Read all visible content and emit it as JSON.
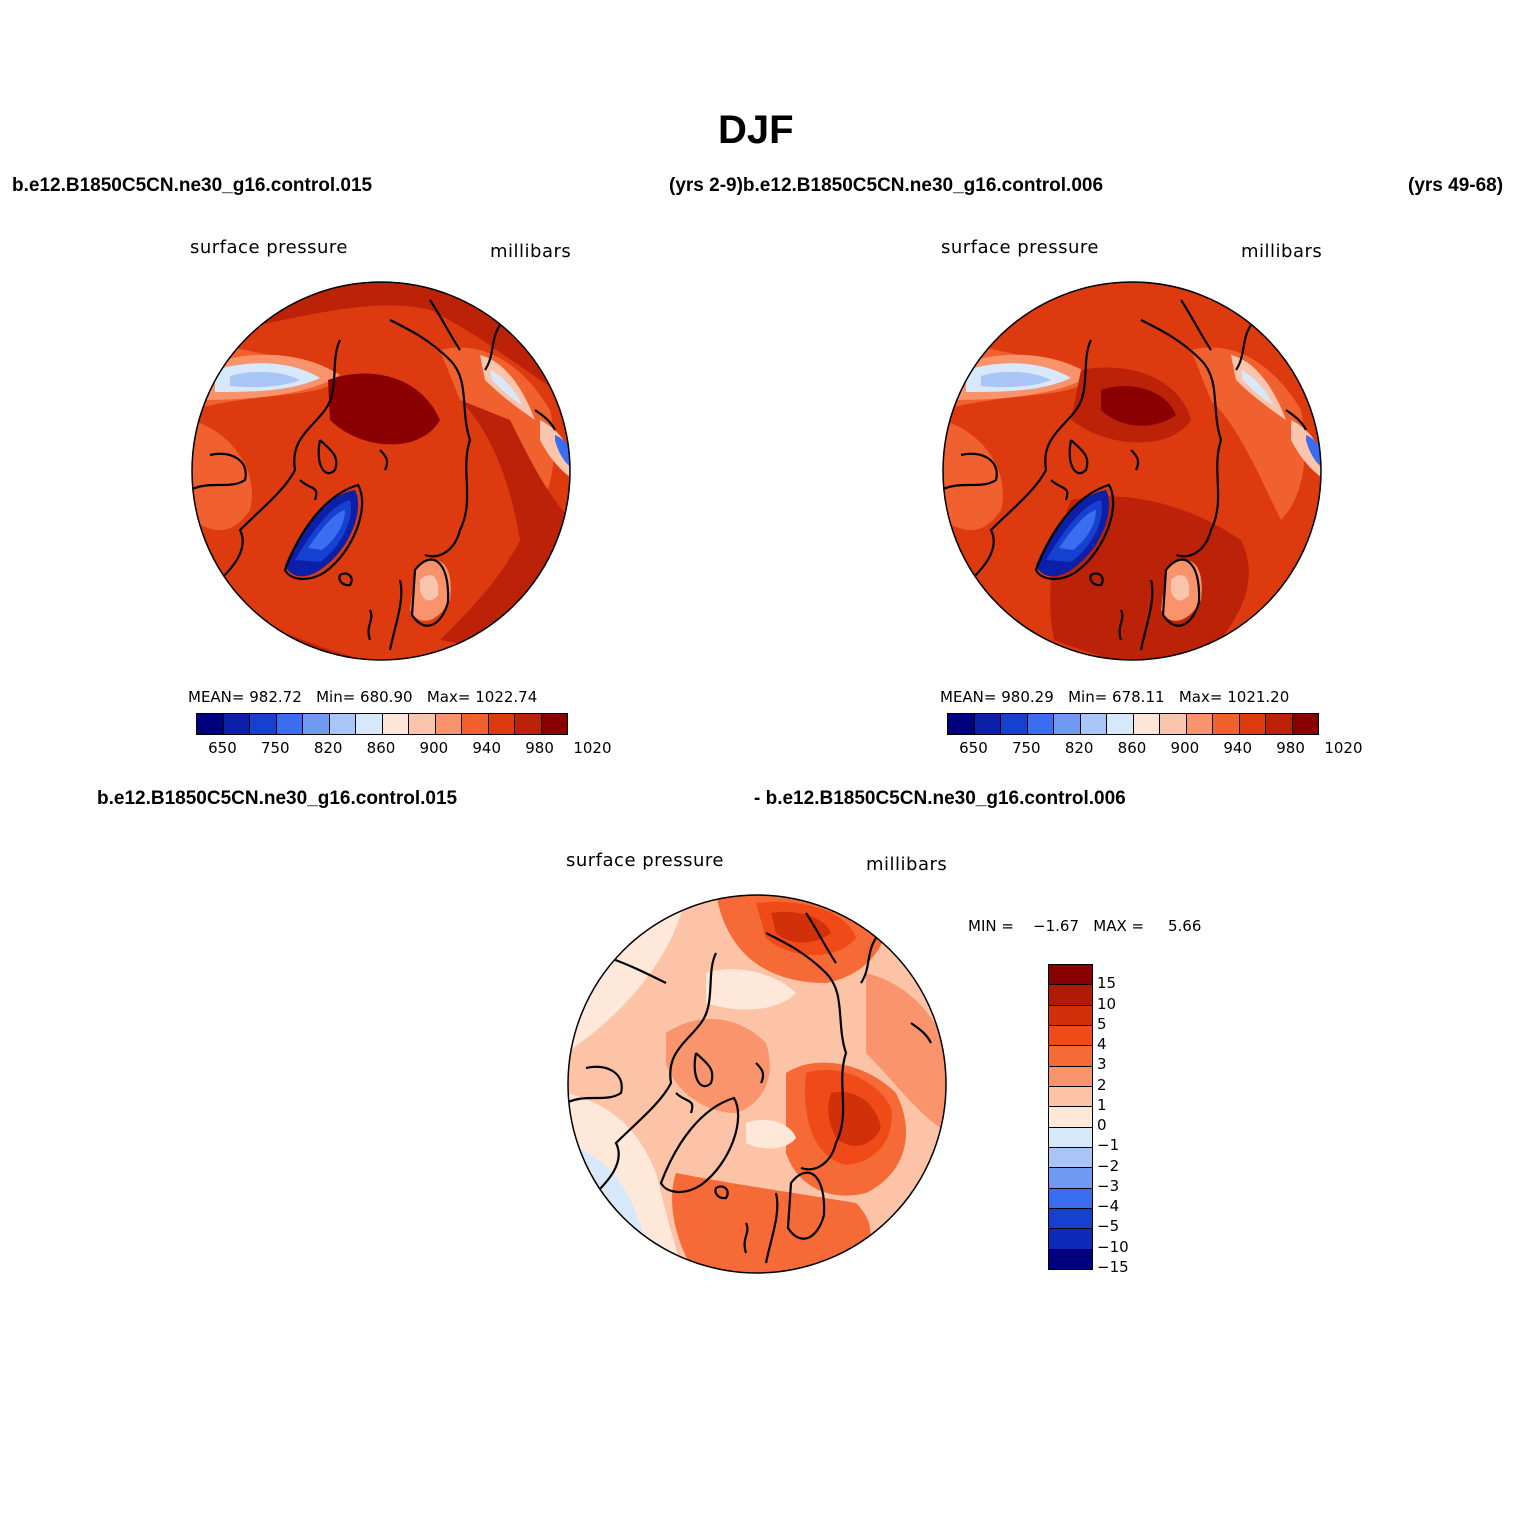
{
  "figure": {
    "title": "DJF",
    "case_a": "b.e12.B1850C5CN.ne30_g16.control.015",
    "case_b_prefixed": "(yrs 2-9)b.e12.B1850C5CN.ne30_g16.control.006",
    "case_b_years": "(yrs 49-68)",
    "diff_case_a": "b.e12.B1850C5CN.ne30_g16.control.015",
    "diff_case_b": "- b.e12.B1850C5CN.ne30_g16.control.006"
  },
  "panels": [
    {
      "variable": "surface pressure",
      "units": "millibars",
      "mean_label": "MEAN=",
      "mean": "982.72",
      "min_label": "Min=",
      "min": "680.90",
      "max_label": "Max=",
      "max": "1022.74"
    },
    {
      "variable": "surface pressure",
      "units": "millibars",
      "mean_label": "MEAN=",
      "mean": "980.29",
      "min_label": "Min=",
      "min": "678.11",
      "max_label": "Max=",
      "max": "1021.20"
    }
  ],
  "diff_panel": {
    "variable": "surface pressure",
    "units": "millibars",
    "min_label": "MIN =",
    "min": "−1.67",
    "max_label": "MAX =",
    "max": "5.66"
  },
  "colorbar_main": {
    "colors": [
      "#00007f",
      "#0b1fa8",
      "#1540d0",
      "#3a6df0",
      "#6f9af2",
      "#a9c4f6",
      "#d8e8fb",
      "#fde5d9",
      "#fbc4ac",
      "#f8936c",
      "#f0612f",
      "#dd3a10",
      "#bb2207",
      "#8a0000"
    ],
    "labels": [
      "650",
      "750",
      "820",
      "860",
      "900",
      "940",
      "980",
      "1020"
    ]
  },
  "colorbar_diff": {
    "colors": [
      "#8a0000",
      "#b11a04",
      "#d2300b",
      "#f04a19",
      "#f56a36",
      "#f9946c",
      "#fcc3a6",
      "#fde8da",
      "#d8e8fb",
      "#a9c4f6",
      "#6f9af2",
      "#3a6df0",
      "#1540d0",
      "#0b2bb8",
      "#00007f"
    ],
    "labels": [
      "15",
      "10",
      "5",
      "4",
      "3",
      "2",
      "1",
      "0",
      "−1",
      "−2",
      "−3",
      "−4",
      "−5",
      "−10",
      "−15"
    ]
  }
}
